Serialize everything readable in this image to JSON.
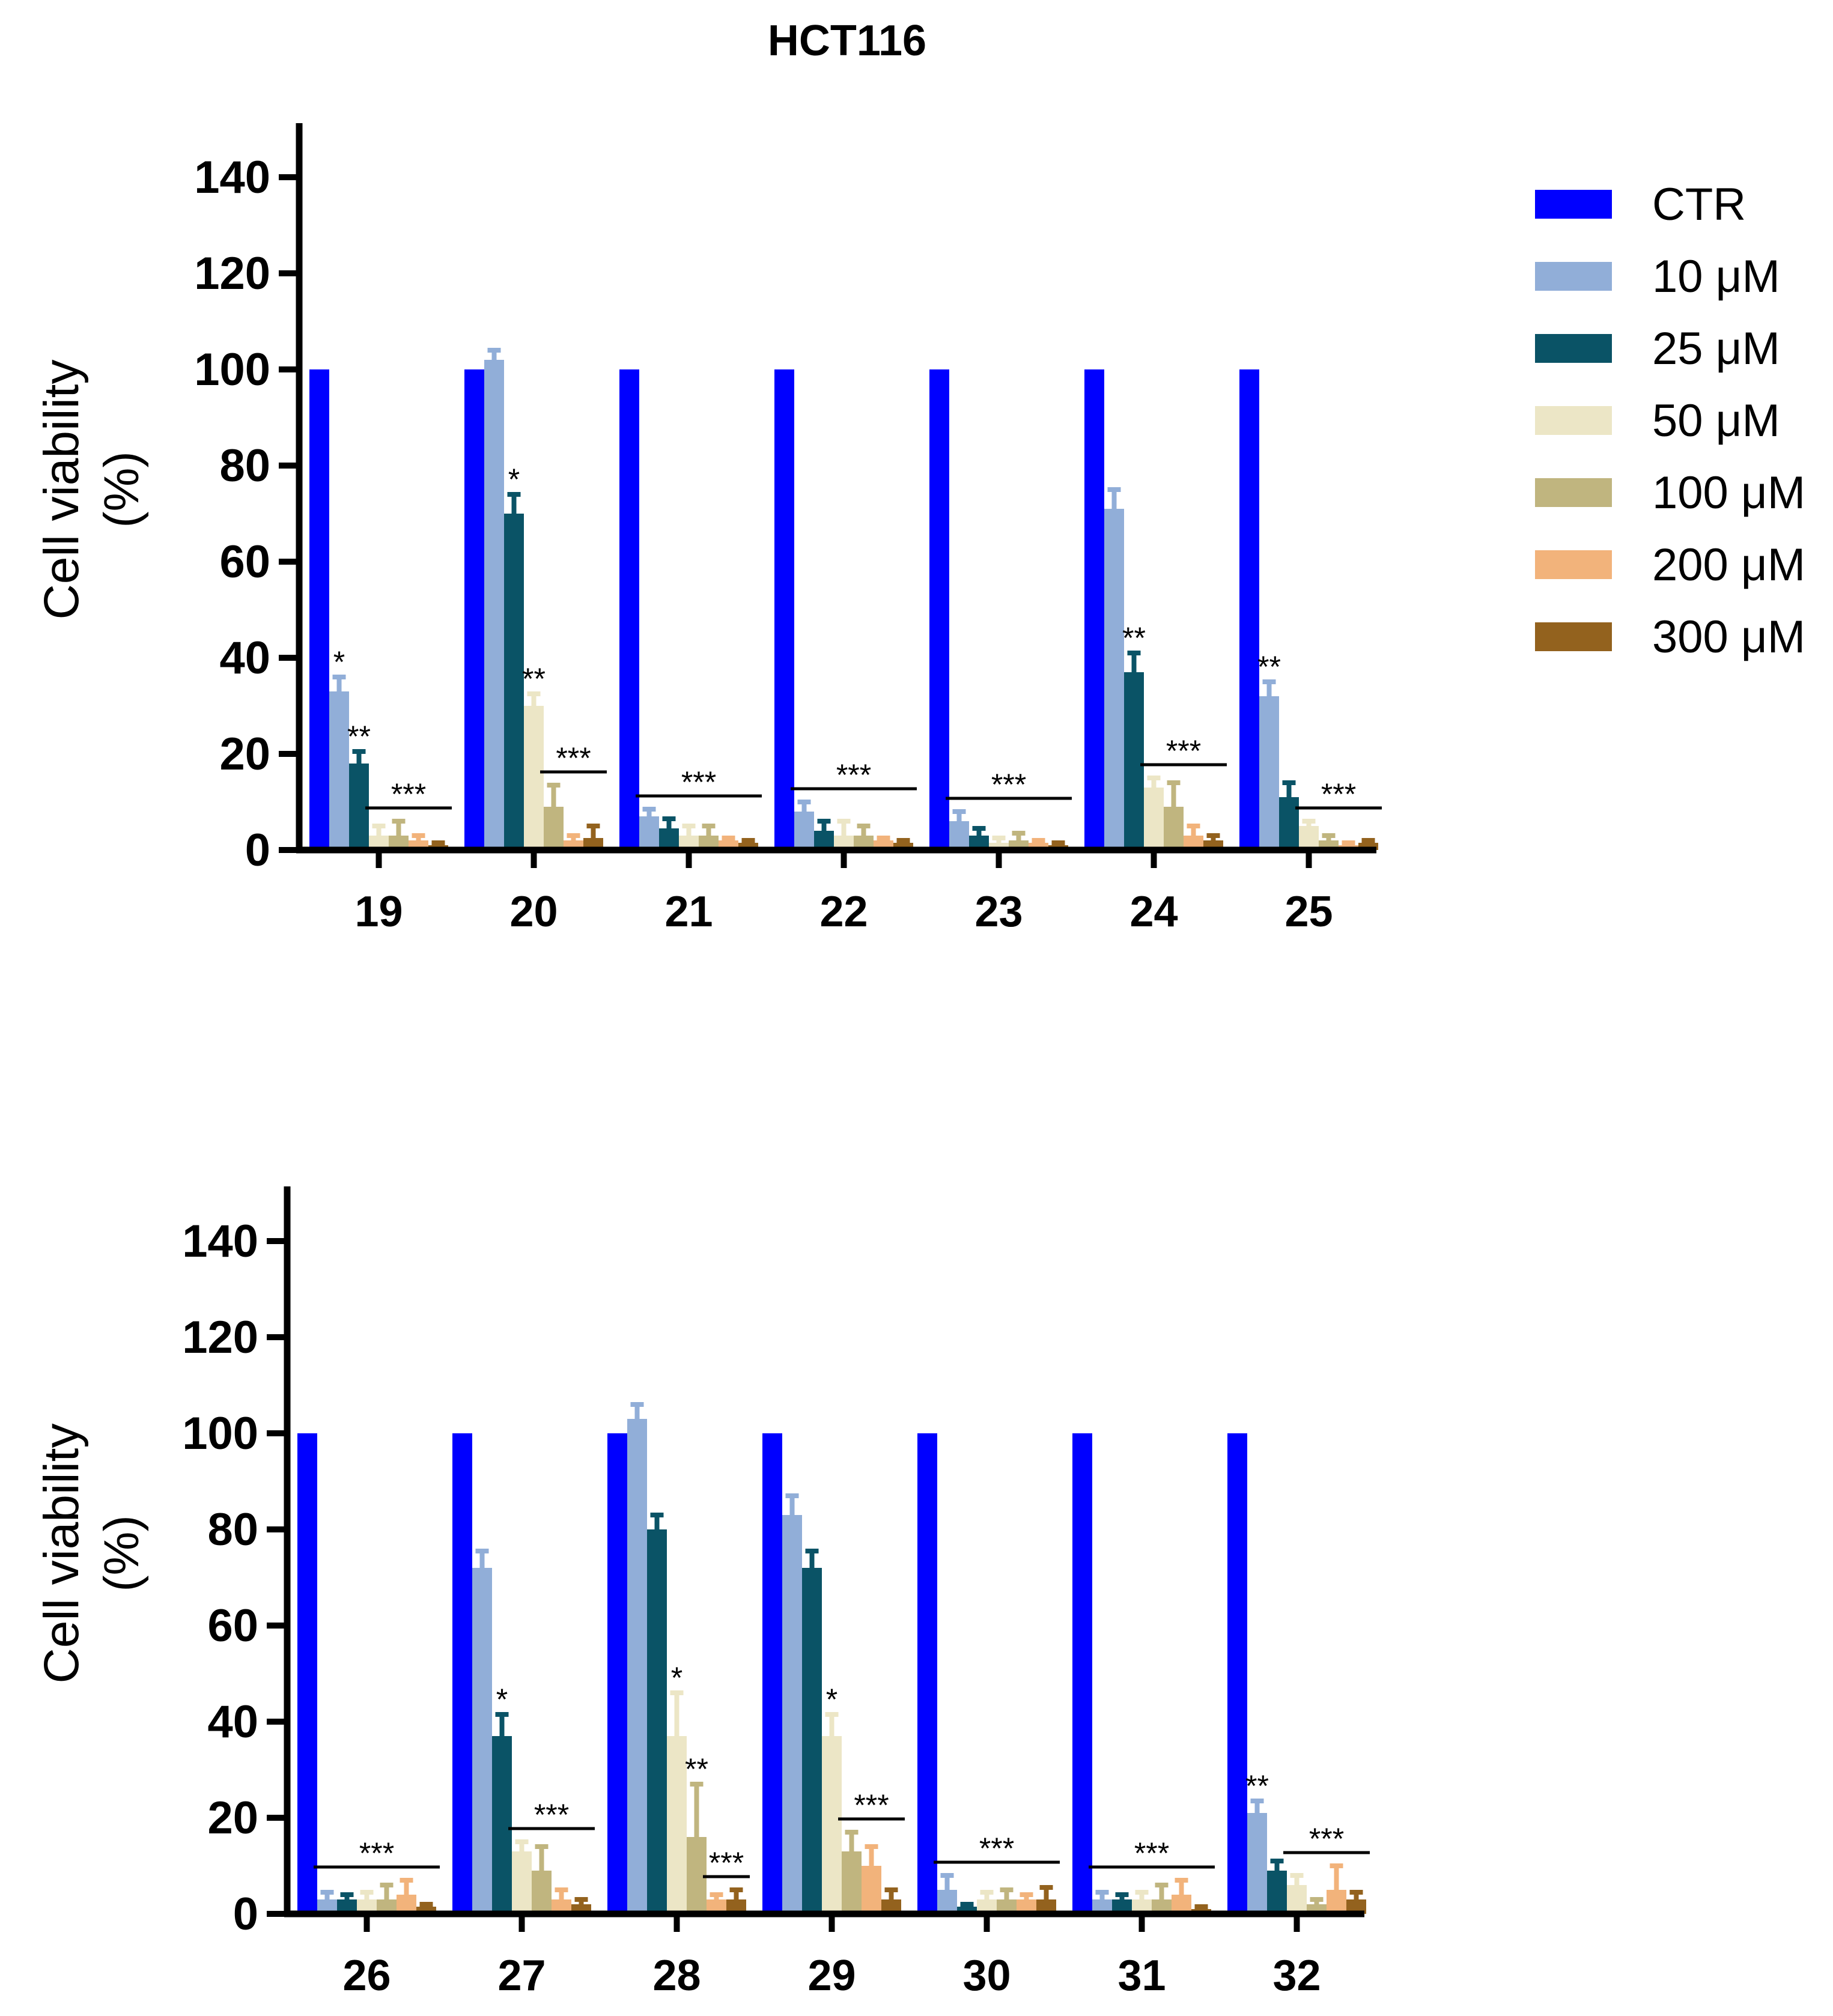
{
  "figure_title": "HCT116",
  "chart_data": [
    {
      "type": "bar",
      "title": "HCT116",
      "xlabel": "",
      "ylabel": "Cell viability (%)",
      "ylim": [
        0,
        150
      ],
      "yticks": [
        0,
        20,
        40,
        60,
        80,
        100,
        120,
        140
      ],
      "categories": [
        "19",
        "20",
        "21",
        "22",
        "23",
        "24",
        "25"
      ],
      "series": [
        {
          "name": "CTR",
          "color": "#0000ff",
          "values": [
            100,
            100,
            100,
            100,
            100,
            100,
            100
          ],
          "errors": [
            0,
            0,
            0,
            0,
            0,
            0,
            0
          ]
        },
        {
          "name": "10 μM",
          "color": "#91aed8",
          "values": [
            33,
            102,
            7,
            8,
            6,
            71,
            32
          ],
          "errors": [
            3,
            2,
            1.5,
            2,
            2,
            4,
            3
          ]
        },
        {
          "name": "25 μM",
          "color": "#0a5366",
          "values": [
            18,
            70,
            4.5,
            4,
            3,
            37,
            11
          ],
          "errors": [
            2.5,
            4,
            2,
            2,
            1.5,
            4,
            3
          ]
        },
        {
          "name": "50 μM",
          "color": "#ece6c6",
          "values": [
            3,
            30,
            3,
            3,
            1.5,
            13,
            5
          ],
          "errors": [
            2,
            2.5,
            2,
            3,
            1,
            2,
            1
          ]
        },
        {
          "name": "100 μM",
          "color": "#c0b57f",
          "values": [
            3,
            9,
            3,
            3,
            2,
            9,
            2
          ],
          "errors": [
            3,
            4.5,
            2,
            2,
            1.5,
            5,
            1
          ]
        },
        {
          "name": "200 μM",
          "color": "#f2b37b",
          "values": [
            2,
            2,
            2,
            2,
            1.5,
            3,
            1
          ],
          "errors": [
            1,
            1,
            0.5,
            0.5,
            0.5,
            2,
            0.5
          ]
        },
        {
          "name": "300 μM",
          "color": "#93621e",
          "values": [
            1,
            2.5,
            1.5,
            1.5,
            1,
            2,
            1.5
          ],
          "errors": [
            0.5,
            2.5,
            0.5,
            0.5,
            0.5,
            1,
            0.5
          ]
        }
      ],
      "annotations": [
        {
          "category": "19",
          "series": "10 μM",
          "label": "*"
        },
        {
          "category": "19",
          "series": "25 μM",
          "label": "**"
        },
        {
          "category": "19",
          "from": "50 μM",
          "to": "300 μM",
          "label": "***"
        },
        {
          "category": "20",
          "series": "25 μM",
          "label": "*"
        },
        {
          "category": "20",
          "series": "50 μM",
          "label": "**"
        },
        {
          "category": "20",
          "from": "100 μM",
          "to": "300 μM",
          "label": "***"
        },
        {
          "category": "21",
          "from": "10 μM",
          "to": "300 μM",
          "label": "***"
        },
        {
          "category": "22",
          "from": "10 μM",
          "to": "300 μM",
          "label": "***"
        },
        {
          "category": "23",
          "from": "10 μM",
          "to": "300 μM",
          "label": "***"
        },
        {
          "category": "24",
          "series": "25 μM",
          "label": "**"
        },
        {
          "category": "24",
          "from": "50 μM",
          "to": "300 μM",
          "label": "***"
        },
        {
          "category": "25",
          "series": "10 μM",
          "label": "**"
        },
        {
          "category": "25",
          "from": "50 μM",
          "to": "300 μM",
          "label": "***"
        }
      ]
    },
    {
      "type": "bar",
      "title": "",
      "xlabel": "",
      "ylabel": "Cell viability (%)",
      "ylim": [
        0,
        150
      ],
      "yticks": [
        0,
        20,
        40,
        60,
        80,
        100,
        120,
        140
      ],
      "categories": [
        "26",
        "27",
        "28",
        "29",
        "30",
        "31",
        "32"
      ],
      "series": [
        {
          "name": "CTR",
          "color": "#0000ff",
          "values": [
            100,
            100,
            100,
            100,
            100,
            100,
            100
          ],
          "errors": [
            0,
            0,
            0,
            0,
            0,
            0,
            0
          ]
        },
        {
          "name": "10 μM",
          "color": "#91aed8",
          "values": [
            3,
            72,
            103,
            83,
            5,
            3,
            21
          ],
          "errors": [
            1.5,
            3.5,
            3,
            4,
            3,
            1.5,
            2.5
          ]
        },
        {
          "name": "25 μM",
          "color": "#0a5366",
          "values": [
            3,
            37,
            80,
            72,
            1.5,
            3,
            9
          ],
          "errors": [
            1,
            4.5,
            3,
            3.5,
            0.5,
            1,
            2
          ]
        },
        {
          "name": "50 μM",
          "color": "#ece6c6",
          "values": [
            3,
            13,
            37,
            37,
            3,
            3,
            6
          ],
          "errors": [
            1.5,
            2,
            9,
            4.5,
            1.5,
            1.5,
            2
          ]
        },
        {
          "name": "100 μM",
          "color": "#c0b57f",
          "values": [
            3,
            9,
            16,
            13,
            3,
            3,
            2
          ],
          "errors": [
            3,
            5,
            11,
            4,
            2,
            3,
            1
          ]
        },
        {
          "name": "200 μM",
          "color": "#f2b37b",
          "values": [
            4,
            3,
            3,
            10,
            3,
            4,
            5
          ],
          "errors": [
            3,
            2,
            1,
            4,
            1,
            3,
            5
          ]
        },
        {
          "name": "300 μM",
          "color": "#93621e",
          "values": [
            1.5,
            2,
            3,
            3,
            3,
            1,
            3
          ],
          "errors": [
            0.5,
            1,
            2,
            2,
            2.5,
            0.5,
            1.5
          ]
        }
      ],
      "annotations": [
        {
          "category": "26",
          "from": "10 μM",
          "to": "300 μM",
          "label": "***"
        },
        {
          "category": "27",
          "series": "25 μM",
          "label": "*"
        },
        {
          "category": "27",
          "from": "50 μM",
          "to": "300 μM",
          "label": "***"
        },
        {
          "category": "28",
          "series": "50 μM",
          "label": "*"
        },
        {
          "category": "28",
          "series": "100 μM",
          "label": "**"
        },
        {
          "category": "28",
          "from": "200 μM",
          "to": "300 μM",
          "label": "***"
        },
        {
          "category": "29",
          "series": "50 μM",
          "label": "*"
        },
        {
          "category": "29",
          "from": "100 μM",
          "to": "300 μM",
          "label": "***"
        },
        {
          "category": "30",
          "from": "10 μM",
          "to": "300 μM",
          "label": "***"
        },
        {
          "category": "31",
          "from": "10 μM",
          "to": "300 μM",
          "label": "***"
        },
        {
          "category": "32",
          "series": "10 μM",
          "label": "**"
        },
        {
          "category": "32",
          "from": "50 μM",
          "to": "300 μM",
          "label": "***"
        }
      ]
    }
  ]
}
